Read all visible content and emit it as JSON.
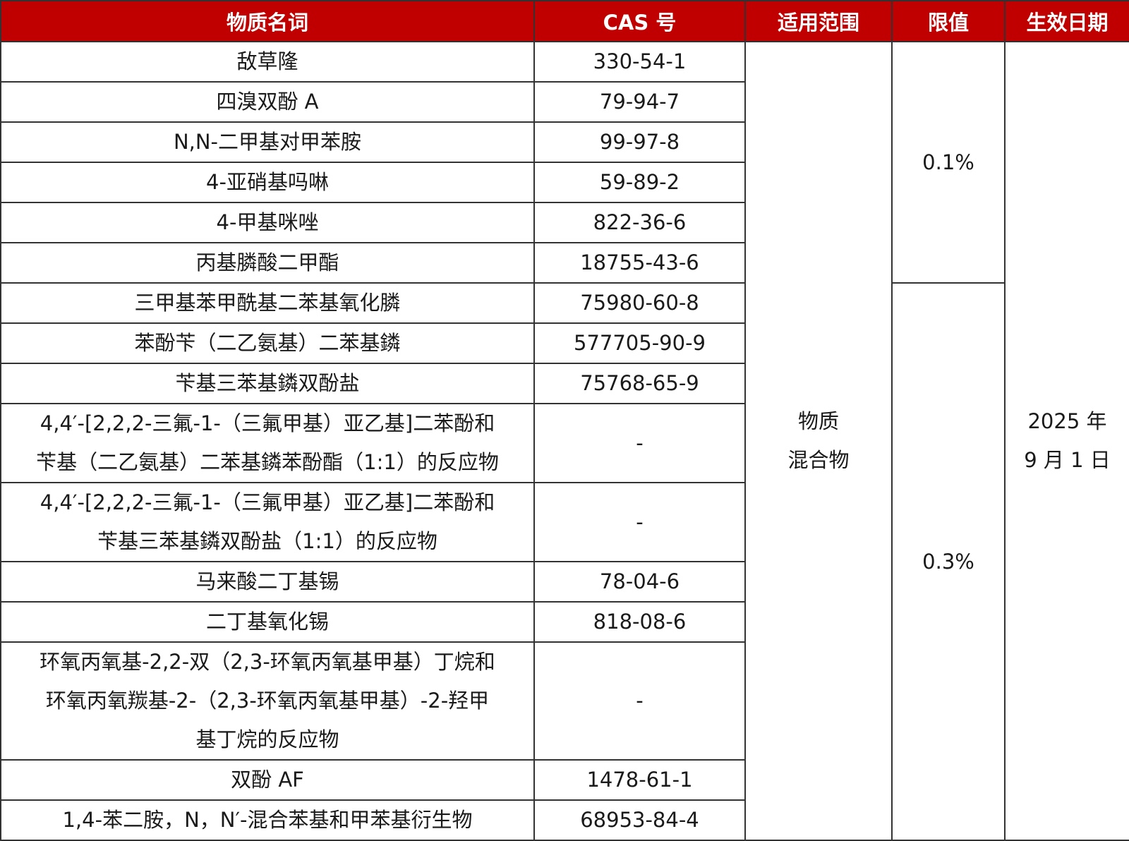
{
  "colors": {
    "header_bg": "#C00000",
    "header_text": "#FFFFFF",
    "border": "#333333"
  },
  "headers": [
    "物质名词",
    "CAS 号",
    "适用范围",
    "限值",
    "生效日期"
  ],
  "rows": [
    {
      "name": [
        "敌草隆"
      ],
      "cas": "330-54-1"
    },
    {
      "name": [
        "四溴双酚 A"
      ],
      "cas": "79-94-7"
    },
    {
      "name": [
        "N,N-二甲基对甲苯胺"
      ],
      "cas": "99-97-8"
    },
    {
      "name": [
        "4-亚硝基吗啉"
      ],
      "cas": "59-89-2"
    },
    {
      "name": [
        "4-甲基咪唑"
      ],
      "cas": "822-36-6"
    },
    {
      "name": [
        "丙基膦酸二甲酯"
      ],
      "cas": "18755-43-6"
    },
    {
      "name": [
        "三甲基苯甲酰基二苯基氧化膦"
      ],
      "cas": "75980-60-8"
    },
    {
      "name": [
        "苯酚苄（二乙氨基）二苯基鏻"
      ],
      "cas": "577705-90-9"
    },
    {
      "name": [
        "苄基三苯基鏻双酚盐"
      ],
      "cas": "75768-65-9"
    },
    {
      "name": [
        "4,4′-[2,2,2-三氟-1-（三氟甲基）亚乙基]二苯酚和",
        "苄基（二乙氨基）二苯基鏻苯酚酯（1:1）的反应物"
      ],
      "cas": "-"
    },
    {
      "name": [
        "4,4′-[2,2,2-三氟-1-（三氟甲基）亚乙基]二苯酚和",
        "苄基三苯基鏻双酚盐（1:1）的反应物"
      ],
      "cas": "-"
    },
    {
      "name": [
        "马来酸二丁基锡"
      ],
      "cas": "78-04-6"
    },
    {
      "name": [
        "二丁基氧化锡"
      ],
      "cas": "818-08-6"
    },
    {
      "name": [
        "环氧丙氧基-2,2-双（2,3-环氧丙氧基甲基）丁烷和",
        "环氧丙氧羰基-2-（2,3-环氧丙氧基甲基）-2-羟甲",
        "基丁烷的反应物"
      ],
      "cas": "-"
    },
    {
      "name": [
        "双酚 AF"
      ],
      "cas": "1478-61-1"
    },
    {
      "name": [
        "1,4-苯二胺，N，N′-混合苯基和甲苯基衍生物"
      ],
      "cas": "68953-84-4"
    }
  ],
  "scope": [
    "物质",
    "混合物"
  ],
  "limits": [
    {
      "value": "0.1%"
    },
    {
      "value": "0.3%"
    }
  ],
  "effective_date": [
    "2025 年",
    "9 月 1 日"
  ]
}
